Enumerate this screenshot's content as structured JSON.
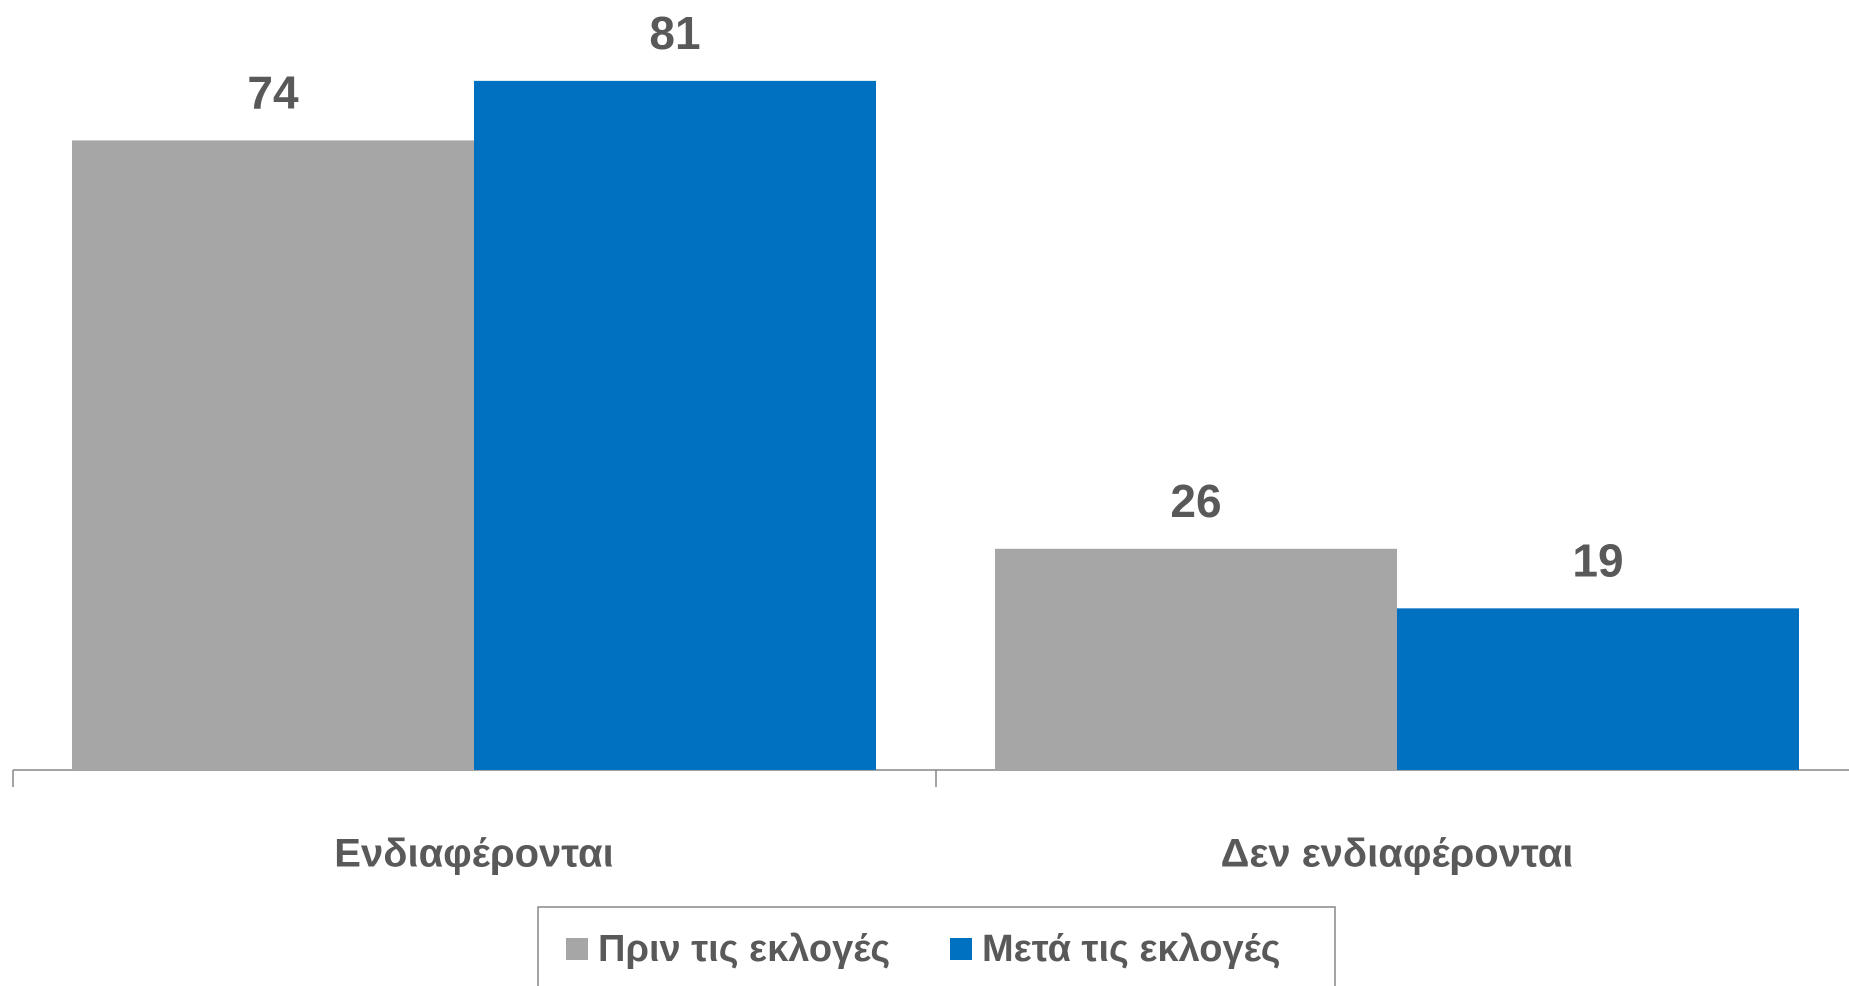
{
  "chart_data": {
    "type": "bar",
    "categories": [
      "Ενδιαφέρονται",
      "Δεν ενδιαφέρονται"
    ],
    "series": [
      {
        "name": "Πριν τις εκλογές",
        "color": "#a6a6a6",
        "values": [
          74,
          26
        ]
      },
      {
        "name": "Μετά τις εκλογές",
        "color": "#0070c0",
        "values": [
          81,
          19
        ]
      }
    ],
    "ylim": [
      0,
      90
    ],
    "legend": "bottom"
  }
}
